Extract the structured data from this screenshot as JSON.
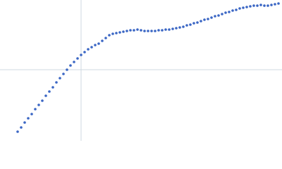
{
  "chart_data": {
    "type": "scatter",
    "color": "#3a66c4",
    "x": [
      25,
      30,
      35,
      40,
      45,
      50,
      55,
      60,
      65,
      70,
      75,
      80,
      85,
      90,
      95,
      100,
      105,
      110,
      115,
      120,
      125,
      130,
      135,
      140,
      145,
      150,
      155,
      160,
      165,
      170,
      175,
      180,
      185,
      190,
      195,
      200,
      205,
      210,
      215,
      220,
      225,
      230,
      235,
      240,
      245,
      250,
      255,
      260,
      265,
      270,
      275,
      280,
      285,
      290,
      295,
      300,
      305,
      310,
      315,
      320,
      325,
      330,
      335,
      340,
      345,
      350,
      355,
      360,
      365,
      370,
      375,
      380,
      385,
      390,
      395
    ],
    "values": [
      13,
      19,
      26,
      32,
      38,
      45,
      51,
      57,
      64,
      70,
      76,
      83,
      89,
      95,
      101,
      107,
      112,
      117,
      122,
      126,
      130,
      133,
      136,
      138,
      142,
      146,
      150,
      152,
      153,
      154,
      155,
      156,
      157,
      157,
      158,
      157,
      156,
      156,
      156,
      156,
      157,
      157,
      158,
      158,
      159,
      160,
      161,
      162,
      164,
      165,
      167,
      168,
      170,
      172,
      173,
      175,
      177,
      178,
      180,
      182,
      183,
      185,
      186,
      188,
      189,
      190,
      191,
      192,
      192,
      193,
      192,
      192,
      193,
      194,
      195
    ],
    "xlim": [
      0,
      400
    ],
    "ylim": [
      0,
      200
    ],
    "xticks": [
      115
    ],
    "yticks": [
      101
    ],
    "grid": true
  }
}
